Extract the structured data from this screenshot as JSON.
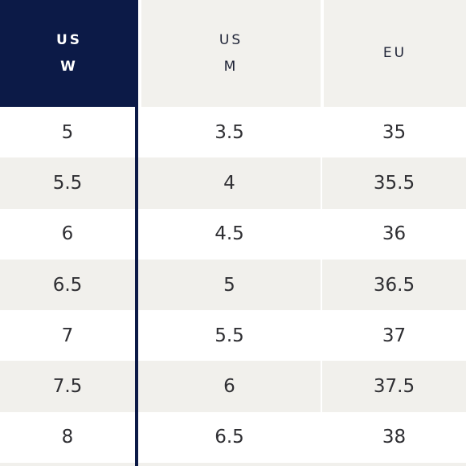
{
  "headers": {
    "col1": [
      "US",
      "W"
    ],
    "col2": [
      "US",
      "M"
    ],
    "col3": [
      "EU"
    ]
  },
  "rows": [
    {
      "us_w": "5",
      "us_m": "3.5",
      "eu": "35"
    },
    {
      "us_w": "5.5",
      "us_m": "4",
      "eu": "35.5"
    },
    {
      "us_w": "6",
      "us_m": "4.5",
      "eu": "36"
    },
    {
      "us_w": "6.5",
      "us_m": "5",
      "eu": "36.5"
    },
    {
      "us_w": "7",
      "us_m": "5.5",
      "eu": "37"
    },
    {
      "us_w": "7.5",
      "us_m": "6",
      "eu": "37.5"
    },
    {
      "us_w": "8",
      "us_m": "6.5",
      "eu": "38"
    }
  ],
  "colors": {
    "header_accent": "#0c1a47",
    "header_bg": "#f2f1ed",
    "row_alt_bg": "#f1f0ec",
    "divider": "#0c1a47"
  }
}
